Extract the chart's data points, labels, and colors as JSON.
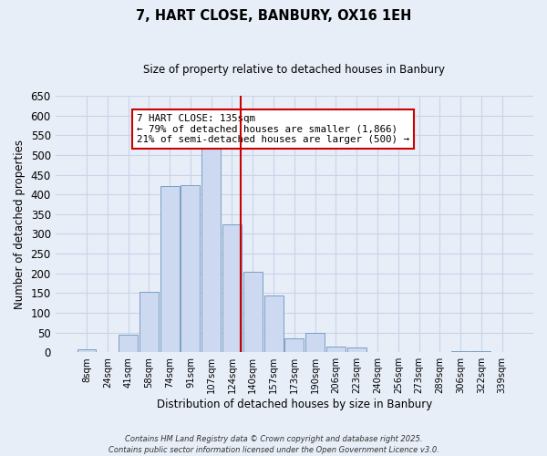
{
  "title": "7, HART CLOSE, BANBURY, OX16 1EH",
  "subtitle": "Size of property relative to detached houses in Banbury",
  "xlabel": "Distribution of detached houses by size in Banbury",
  "ylabel": "Number of detached properties",
  "bin_labels": [
    "8sqm",
    "24sqm",
    "41sqm",
    "58sqm",
    "74sqm",
    "91sqm",
    "107sqm",
    "124sqm",
    "140sqm",
    "157sqm",
    "173sqm",
    "190sqm",
    "206sqm",
    "223sqm",
    "240sqm",
    "256sqm",
    "273sqm",
    "289sqm",
    "306sqm",
    "322sqm",
    "339sqm"
  ],
  "bar_values": [
    8,
    0,
    45,
    153,
    422,
    424,
    542,
    323,
    205,
    143,
    35,
    49,
    14,
    13,
    0,
    0,
    0,
    0,
    2,
    2,
    1
  ],
  "bar_color": "#ccd9f0",
  "bar_edge_color": "#7a9fc4",
  "vline_color": "#cc0000",
  "ylim": [
    0,
    650
  ],
  "yticks": [
    0,
    50,
    100,
    150,
    200,
    250,
    300,
    350,
    400,
    450,
    500,
    550,
    600,
    650
  ],
  "annotation_title": "7 HART CLOSE: 135sqm",
  "annotation_line1": "← 79% of detached houses are smaller (1,866)",
  "annotation_line2": "21% of semi-detached houses are larger (500) →",
  "footer1": "Contains HM Land Registry data © Crown copyright and database right 2025.",
  "footer2": "Contains public sector information licensed under the Open Government Licence v3.0.",
  "bg_color": "#e8eef8",
  "grid_color": "#c8d4e8"
}
